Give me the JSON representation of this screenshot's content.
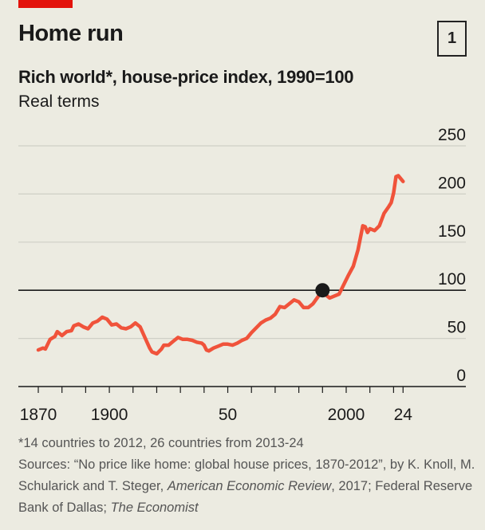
{
  "title": "Home run",
  "chart_number": "1",
  "subtitle": "Rich world*, house-price index, 1990=100",
  "unit_label": "Real terms",
  "colors": {
    "background": "#ecebe1",
    "line": "#f0533b",
    "brand_red": "#e3120b",
    "grid": "#cfcfc6",
    "baseline": "#1a1a1a"
  },
  "chart_data": {
    "type": "line",
    "title": "Home run",
    "subtitle": "Rich world*, house-price index, 1990=100",
    "ylabel": "Real terms",
    "xlim": [
      1870,
      2024
    ],
    "ylim": [
      0,
      250
    ],
    "y_ticks": [
      0,
      50,
      100,
      150,
      200,
      250
    ],
    "y_tick_labels": [
      "0",
      "50",
      "100",
      "150",
      "200",
      "250"
    ],
    "x_ticks": [
      1870,
      1880,
      1890,
      1900,
      1910,
      1920,
      1930,
      1940,
      1950,
      1960,
      1970,
      1980,
      1990,
      2000,
      2010,
      2020,
      2024
    ],
    "x_tick_labels": [
      {
        "year": 1870,
        "label": "1870"
      },
      {
        "year": 1900,
        "label": "1900"
      },
      {
        "year": 1950,
        "label": "50"
      },
      {
        "year": 2000,
        "label": "2000"
      },
      {
        "year": 2024,
        "label": "24"
      }
    ],
    "grid": true,
    "reference_line": 100,
    "highlight_point": {
      "x": 1990,
      "y": 100
    },
    "x": [
      1870,
      1872,
      1873,
      1875,
      1877,
      1878,
      1880,
      1882,
      1884,
      1885,
      1887,
      1889,
      1891,
      1893,
      1895,
      1897,
      1899,
      1901,
      1903,
      1905,
      1907,
      1909,
      1911,
      1913,
      1915,
      1917,
      1918,
      1920,
      1922,
      1923,
      1925,
      1927,
      1929,
      1931,
      1933,
      1935,
      1937,
      1939,
      1940,
      1941,
      1942,
      1944,
      1946,
      1948,
      1950,
      1952,
      1954,
      1956,
      1958,
      1960,
      1962,
      1964,
      1966,
      1968,
      1970,
      1972,
      1974,
      1976,
      1978,
      1980,
      1982,
      1984,
      1986,
      1988,
      1990,
      1992,
      1993,
      1995,
      1997,
      1999,
      2001,
      2003,
      2005,
      2007,
      2008,
      2009,
      2010,
      2012,
      2014,
      2016,
      2018,
      2019,
      2020,
      2021,
      2022,
      2023,
      2024
    ],
    "y": [
      38,
      40,
      39,
      49,
      52,
      57,
      53,
      57,
      58,
      63,
      65,
      62,
      60,
      66,
      68,
      72,
      70,
      64,
      65,
      61,
      60,
      62,
      66,
      62,
      51,
      40,
      36,
      34,
      39,
      43,
      43,
      47,
      51,
      49,
      49,
      48,
      46,
      45,
      43,
      38,
      37,
      40,
      42,
      44,
      44,
      43,
      45,
      48,
      50,
      56,
      61,
      66,
      69,
      71,
      75,
      83,
      82,
      86,
      90,
      88,
      82,
      82,
      86,
      93,
      100,
      94,
      92,
      94,
      96,
      106,
      116,
      125,
      142,
      167,
      166,
      160,
      164,
      162,
      167,
      180,
      187,
      191,
      201,
      218,
      219,
      216,
      213
    ]
  },
  "footnote": "*14 countries to 2012, 26 countries from 2013-24",
  "sources": {
    "a": "Sources: “No price like home: global house prices, 1870-2012”, by K. Knoll, M. Schularick and T. Steger, ",
    "b": "American Economic Review",
    "c": ", 2017; Federal Reserve Bank of Dallas; ",
    "d": "The Economist"
  }
}
